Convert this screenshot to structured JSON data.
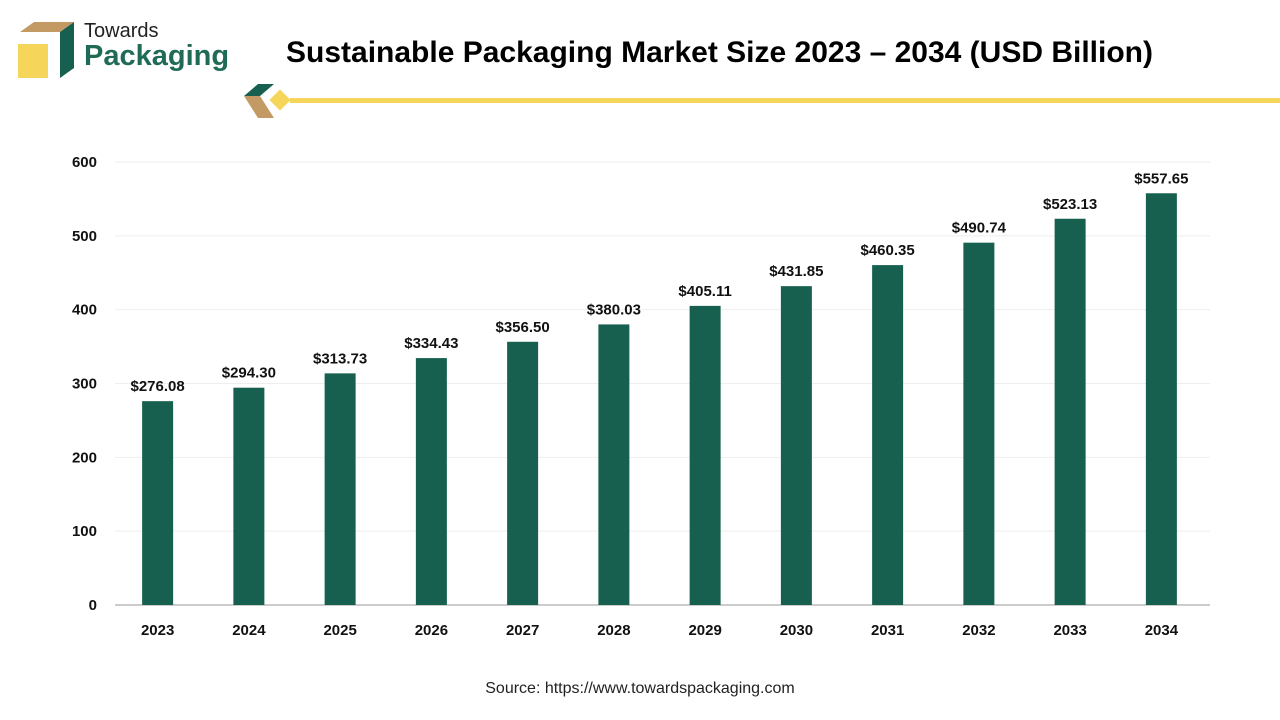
{
  "brand": {
    "line1": "Towards",
    "line2": "Packaging"
  },
  "colors": {
    "bar": "#17604f",
    "accent": "#f5d55a",
    "brown": "#c39a63"
  },
  "source": "Source: https://www.towardspackaging.com",
  "chart_data": {
    "type": "bar",
    "title": "Sustainable Packaging Market Size 2023 – 2034 (USD Billion)",
    "categories": [
      "2023",
      "2024",
      "2025",
      "2026",
      "2027",
      "2028",
      "2029",
      "2030",
      "2031",
      "2032",
      "2033",
      "2034"
    ],
    "values": [
      276.08,
      294.3,
      313.73,
      334.43,
      356.5,
      380.03,
      405.11,
      431.85,
      460.35,
      490.74,
      523.13,
      557.65
    ],
    "data_labels": [
      "$276.08",
      "$294.30",
      "$313.73",
      "$334.43",
      "$356.50",
      "$380.03",
      "$405.11",
      "$431.85",
      "$460.35",
      "$490.74",
      "$523.13",
      "$557.65"
    ],
    "xlabel": "",
    "ylabel": "",
    "ylim": [
      0,
      600
    ],
    "yticks": [
      0,
      100,
      200,
      300,
      400,
      500,
      600
    ],
    "grid": true,
    "legend": "none"
  }
}
